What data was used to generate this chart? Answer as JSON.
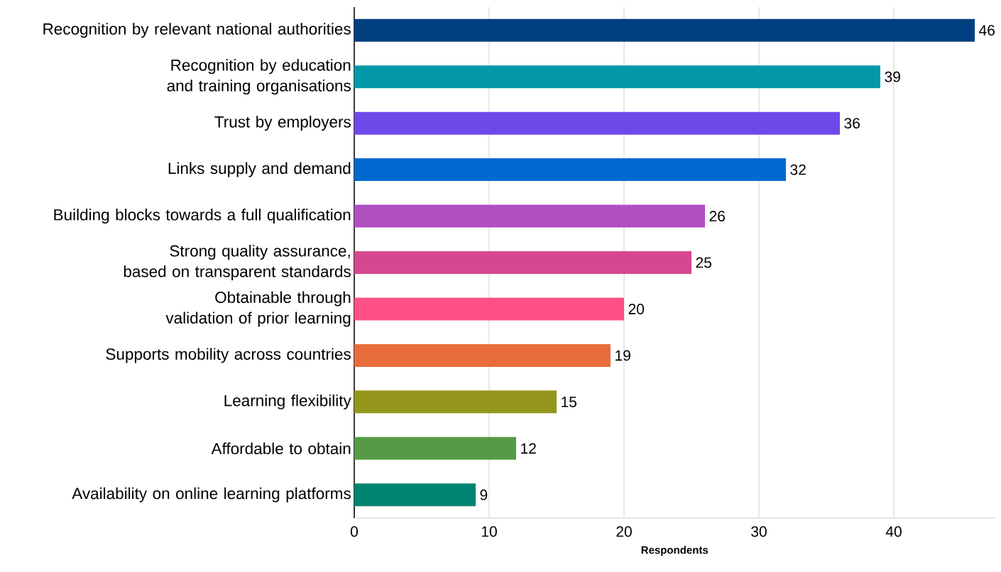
{
  "chart_data": {
    "type": "bar",
    "orientation": "horizontal",
    "xlabel": "Respondents",
    "categories": [
      "Recognition by relevant national authorities",
      "Recognition by education and training organisations",
      "Trust by employers",
      "Links supply and demand",
      "Building blocks towards a full qualification",
      "Strong quality assurance, based on transparent standards",
      "Obtainable through validation of prior learning",
      "Supports mobility across countries",
      "Learning flexibility",
      "Affordable to obtain",
      "Availability on online learning platforms"
    ],
    "values": [
      46,
      39,
      36,
      32,
      26,
      25,
      20,
      19,
      15,
      12,
      9
    ],
    "colors": [
      "#003f7f",
      "#0399a8",
      "#6f49e8",
      "#006ad1",
      "#b04fc0",
      "#d6478f",
      "#ff5085",
      "#e76d3c",
      "#95961c",
      "#559a45",
      "#008472"
    ],
    "xlim": [
      0,
      47.5
    ],
    "xticks": [
      0,
      10,
      20,
      30,
      40
    ],
    "grid": "x",
    "data_labels": true
  }
}
